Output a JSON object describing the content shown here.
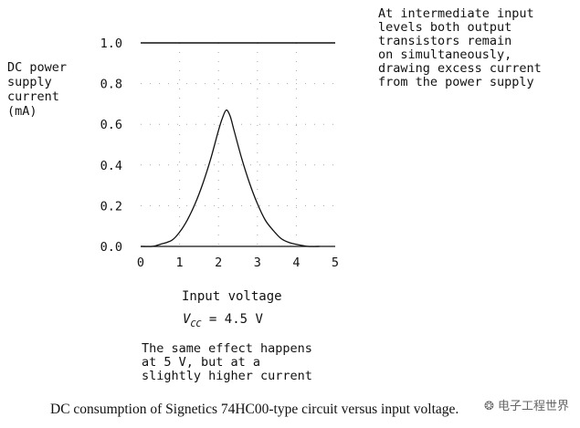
{
  "chart_data": {
    "type": "line",
    "title": "",
    "ylabel_lines": [
      "DC power",
      "supply",
      "current",
      "(mA)"
    ],
    "xlabel": "Input voltage",
    "xlim": [
      0,
      5
    ],
    "ylim": [
      0,
      1.0
    ],
    "x_ticks": [
      "0",
      "1",
      "2",
      "3",
      "4",
      "5"
    ],
    "y_ticks": [
      "0.0",
      "0.2",
      "0.4",
      "0.6",
      "0.8",
      "1.0"
    ],
    "grid": "dotted",
    "series": [
      {
        "x": [
          0.0,
          0.3,
          0.5,
          0.8,
          1.0,
          1.2,
          1.4,
          1.6,
          1.8,
          2.0,
          2.1,
          2.2,
          2.3,
          2.4,
          2.6,
          2.8,
          3.0,
          3.2,
          3.4,
          3.6,
          3.8,
          4.0,
          4.3,
          4.6
        ],
        "y": [
          0.0,
          0.0,
          0.01,
          0.03,
          0.07,
          0.13,
          0.21,
          0.31,
          0.43,
          0.57,
          0.63,
          0.67,
          0.64,
          0.57,
          0.43,
          0.31,
          0.21,
          0.13,
          0.08,
          0.04,
          0.02,
          0.01,
          0.0,
          0.0
        ]
      }
    ]
  },
  "annotations": {
    "vcc_symbol": "V",
    "vcc_sub": "CC",
    "vcc_value": " =  4.5  V",
    "right_note": [
      "At intermediate input",
      "levels both output",
      "transistors remain",
      "on simultaneously,",
      "drawing excess current",
      "from the power supply"
    ],
    "bottom_note": [
      "The same effect happens",
      "at  5 V, but at a",
      "slightly higher current"
    ]
  },
  "caption": "DC consumption of Signetics 74HC00-type circuit versus input voltage.",
  "watermark": "❂ 电子工程世界"
}
